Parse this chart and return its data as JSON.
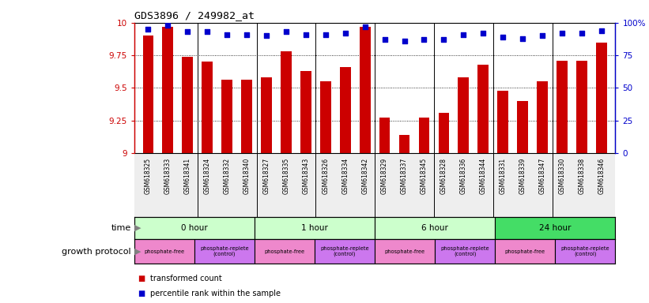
{
  "title": "GDS3896 / 249982_at",
  "samples": [
    "GSM618325",
    "GSM618333",
    "GSM618341",
    "GSM618324",
    "GSM618332",
    "GSM618340",
    "GSM618327",
    "GSM618335",
    "GSM618343",
    "GSM618326",
    "GSM618334",
    "GSM618342",
    "GSM618329",
    "GSM618337",
    "GSM618345",
    "GSM618328",
    "GSM618336",
    "GSM618344",
    "GSM618331",
    "GSM618339",
    "GSM618347",
    "GSM618330",
    "GSM618338",
    "GSM618346"
  ],
  "bar_values": [
    9.9,
    9.97,
    9.74,
    9.7,
    9.56,
    9.56,
    9.58,
    9.78,
    9.63,
    9.55,
    9.66,
    9.97,
    9.27,
    9.14,
    9.27,
    9.31,
    9.58,
    9.68,
    9.48,
    9.4,
    9.55,
    9.71,
    9.71,
    9.85
  ],
  "percentile_values": [
    95,
    98,
    93,
    93,
    91,
    91,
    90,
    93,
    91,
    91,
    92,
    97,
    87,
    86,
    87,
    87,
    91,
    92,
    89,
    88,
    90,
    92,
    92,
    94
  ],
  "bar_color": "#cc0000",
  "percentile_color": "#0000cc",
  "ylim_left": [
    9.0,
    10.0
  ],
  "ylim_right": [
    0,
    100
  ],
  "yticks_left": [
    9.0,
    9.25,
    9.5,
    9.75,
    10.0
  ],
  "yticks_right": [
    0,
    25,
    50,
    75,
    100
  ],
  "ytick_labels_left": [
    "9",
    "9.25",
    "9.5",
    "9.75",
    "10"
  ],
  "ytick_labels_right": [
    "0",
    "25",
    "50",
    "75",
    "100%"
  ],
  "grid_values": [
    9.25,
    9.5,
    9.75
  ],
  "time_colors": [
    "#ccffcc",
    "#ccffcc",
    "#ccffcc",
    "#44dd66"
  ],
  "time_labels": [
    "0 hour",
    "1 hour",
    "6 hour",
    "24 hour"
  ],
  "time_starts": [
    0,
    6,
    12,
    18
  ],
  "time_ends": [
    6,
    12,
    18,
    24
  ],
  "proto_labels": [
    "phosphate-free",
    "phosphate-replete\n(control)",
    "phosphate-free",
    "phosphate-replete\n(control)",
    "phosphate-free",
    "phosphate-replete\n(control)",
    "phosphate-free",
    "phosphate-replete\n(control)"
  ],
  "proto_starts": [
    0,
    3,
    6,
    9,
    12,
    15,
    18,
    21
  ],
  "proto_ends": [
    3,
    6,
    9,
    12,
    15,
    18,
    21,
    24
  ],
  "proto_colors": [
    "#ee88cc",
    "#cc77ee",
    "#ee88cc",
    "#cc77ee",
    "#ee88cc",
    "#cc77ee",
    "#ee88cc",
    "#cc77ee"
  ],
  "sep_positions": [
    3,
    6,
    9,
    12,
    15,
    18,
    21
  ],
  "bg_color": "#ffffff"
}
